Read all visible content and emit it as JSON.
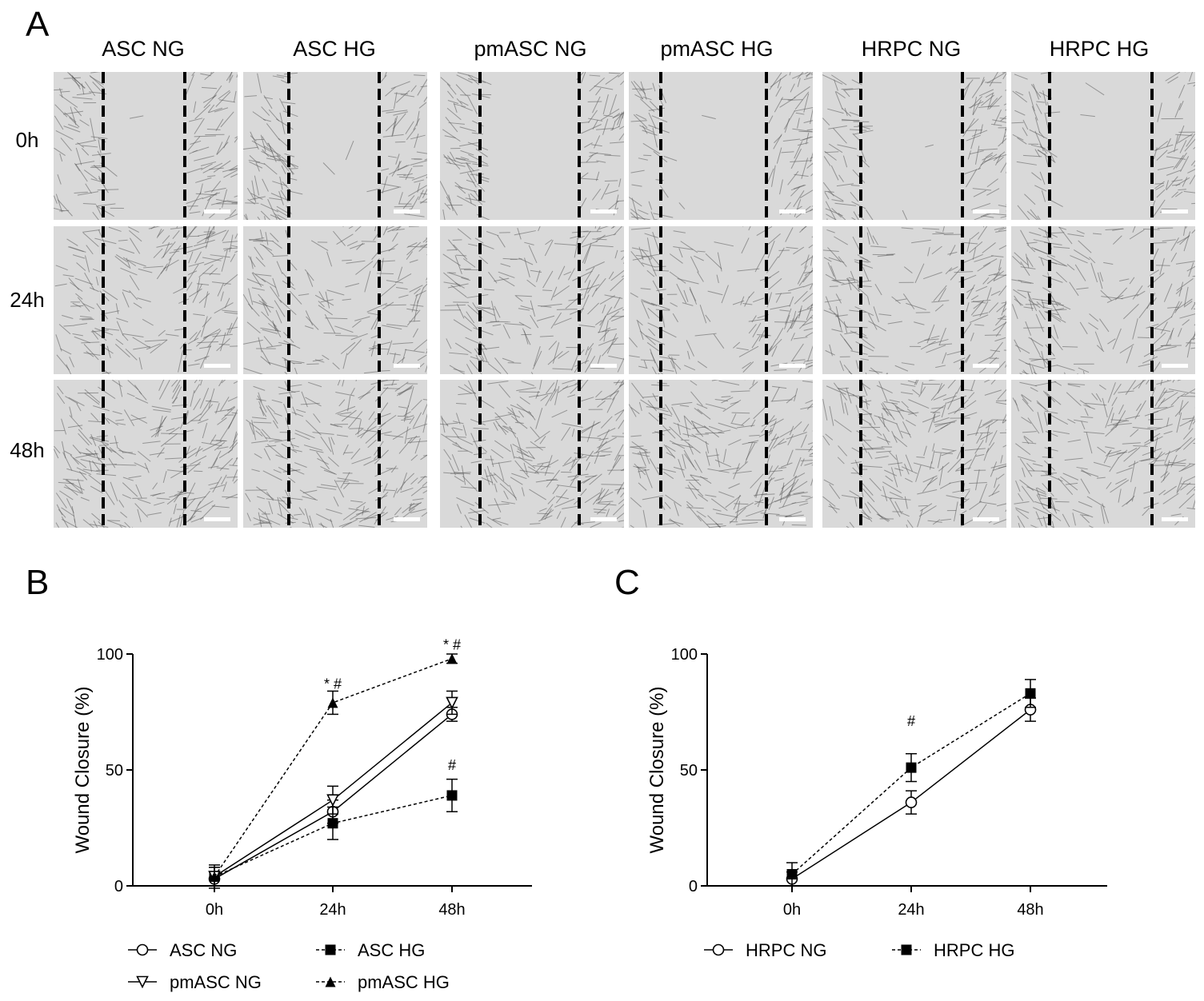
{
  "panel_letters": {
    "a": "A",
    "b": "B",
    "c": "C"
  },
  "micrograph_grid": {
    "columns": [
      "ASC NG",
      "ASC HG",
      "pmASC NG",
      "pmASC HG",
      "HRPC NG",
      "HRPC HG"
    ],
    "rows": [
      "0h",
      "24h",
      "48h"
    ]
  },
  "colors": {
    "line": "#000000",
    "image_bg": "#d9d9d9",
    "cell": "#5a5a5a",
    "scale_bar": "#ffffff"
  },
  "chart_data": [
    {
      "type": "line",
      "panel": "B",
      "ylabel": "Wound Closure (%)",
      "xlabel": "",
      "x": [
        "0h",
        "24h",
        "48h"
      ],
      "ylim": [
        0,
        100
      ],
      "yticks": [
        0,
        50,
        100
      ],
      "series": [
        {
          "name": "ASC NG",
          "values": [
            3,
            32,
            74
          ],
          "errors": [
            3,
            5,
            3
          ],
          "marker": "open-circle",
          "line": "solid"
        },
        {
          "name": "ASC HG",
          "values": [
            4,
            27,
            39
          ],
          "errors": [
            4,
            7,
            7
          ],
          "marker": "filled-square",
          "line": "dashed"
        },
        {
          "name": "pmASC NG",
          "values": [
            4,
            37,
            79
          ],
          "errors": [
            5,
            6,
            5
          ],
          "marker": "open-down-triangle",
          "line": "solid"
        },
        {
          "name": "pmASC HG",
          "values": [
            4,
            79,
            98
          ],
          "errors": [
            4,
            5,
            2
          ],
          "marker": "filled-up-triangle",
          "line": "dashed"
        }
      ],
      "annotations": [
        {
          "x": "24h",
          "y": 87,
          "text": "* #"
        },
        {
          "x": "48h",
          "y": 104,
          "text": "* #"
        },
        {
          "x": "48h",
          "y": 52,
          "text": "#"
        }
      ],
      "legend_placement": "bottom"
    },
    {
      "type": "line",
      "panel": "C",
      "ylabel": "Wound Closure (%)",
      "xlabel": "",
      "x": [
        "0h",
        "24h",
        "48h"
      ],
      "ylim": [
        0,
        100
      ],
      "yticks": [
        0,
        50,
        100
      ],
      "series": [
        {
          "name": "HRPC NG",
          "values": [
            3,
            36,
            76
          ],
          "errors": [
            3,
            5,
            5
          ],
          "marker": "open-circle",
          "line": "solid"
        },
        {
          "name": "HRPC HG",
          "values": [
            5,
            51,
            83
          ],
          "errors": [
            5,
            6,
            6
          ],
          "marker": "filled-square",
          "line": "dashed"
        }
      ],
      "annotations": [
        {
          "x": "24h",
          "y": 71,
          "text": "#"
        }
      ],
      "legend_placement": "bottom"
    }
  ]
}
